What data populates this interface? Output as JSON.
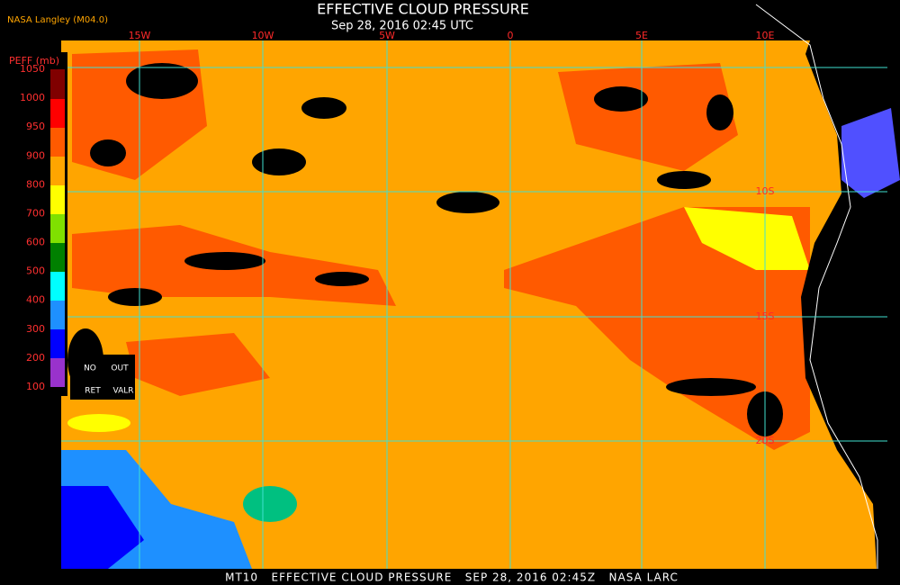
{
  "header": {
    "title": "EFFECTIVE CLOUD PRESSURE",
    "subtitle": "Sep 28, 2016 02:45 UTC",
    "source": "NASA Langley (M04.0)"
  },
  "map": {
    "longitude_labels": [
      "15W",
      "10W",
      "5W",
      "0",
      "5E",
      "10E"
    ],
    "latitude_labels": [
      "10S",
      "15S",
      "20S"
    ]
  },
  "legend": {
    "title": "PEFF (mb)",
    "levels": [
      1050,
      1000,
      950,
      900,
      800,
      700,
      600,
      500,
      400,
      300,
      200,
      100
    ],
    "notes": [
      "NO",
      "OUT",
      "RET",
      "VALR"
    ]
  },
  "footer": "MT10   EFFECTIVE CLOUD PRESSURE   SEP 28, 2016 02:45Z   NASA LARC"
}
